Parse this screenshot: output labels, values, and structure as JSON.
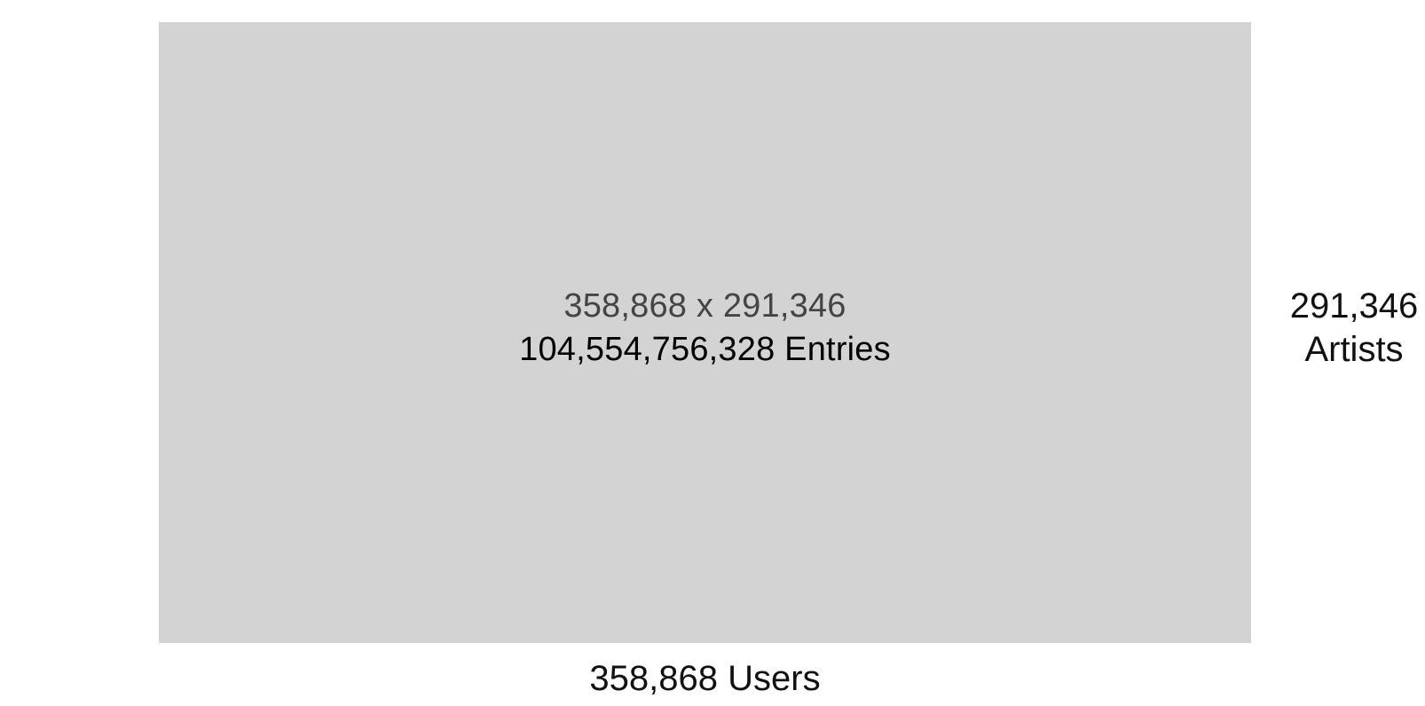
{
  "matrix": {
    "dimensions_label": "358,868 x 291,346",
    "entries_label": "104,554,756,328 Entries",
    "fill_color": "#d3d3d3"
  },
  "right_axis": {
    "count": "291,346",
    "name": "Artists"
  },
  "bottom_axis": {
    "label": "358,868 Users"
  }
}
